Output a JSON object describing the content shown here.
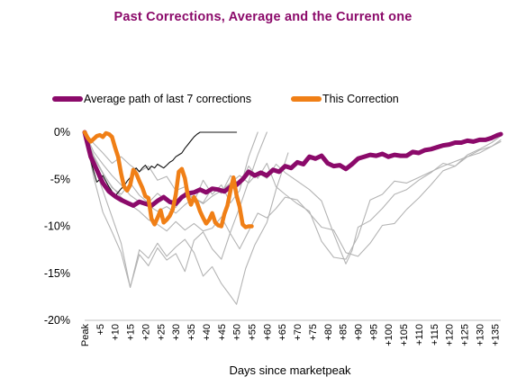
{
  "chart_data": {
    "type": "line",
    "title": "Past Corrections, Average and the Current one",
    "xlabel": "Days since marketpeak",
    "ylabel": "",
    "xlim": [
      0,
      137
    ],
    "ylim": [
      -20,
      0
    ],
    "y_ticks": [
      "0%",
      "-5%",
      "-10%",
      "-15%",
      "-20%"
    ],
    "y_tick_values": [
      0,
      -5,
      -10,
      -15,
      -20
    ],
    "x_ticks": [
      "Peak",
      "+5",
      "+10",
      "+15",
      "+20",
      "+25",
      "+30",
      "+35",
      "+40",
      "+45",
      "+50",
      "+55",
      "+60",
      "+65",
      "+70",
      "+75",
      "+80",
      "+85",
      "+90",
      "+95",
      "+100",
      "+105",
      "+110",
      "+115",
      "+120",
      "+125",
      "+130",
      "+135"
    ],
    "x_tick_values": [
      0,
      5,
      10,
      15,
      20,
      25,
      30,
      35,
      40,
      45,
      50,
      55,
      60,
      65,
      70,
      75,
      80,
      85,
      90,
      95,
      100,
      105,
      110,
      115,
      120,
      125,
      130,
      135
    ],
    "legend_position": "top-left",
    "grid": false,
    "colors": {
      "average": "#8b0a6a",
      "current": "#f07f16",
      "past": "#b4b4b4",
      "dark_past": "#111111",
      "title": "#8b0a6a"
    },
    "series": [
      {
        "name": "Average path of last 7 corrections",
        "role": "average",
        "x": [
          0,
          2,
          4,
          6,
          8,
          10,
          12,
          14,
          16,
          18,
          20,
          22,
          24,
          26,
          28,
          30,
          32,
          34,
          36,
          38,
          40,
          42,
          44,
          46,
          48,
          50,
          52,
          54,
          56,
          58,
          60,
          62,
          64,
          66,
          68,
          70,
          72,
          74,
          76,
          78,
          80,
          82,
          84,
          86,
          88,
          90,
          92,
          94,
          96,
          98,
          100,
          102,
          104,
          106,
          108,
          110,
          112,
          114,
          116,
          118,
          120,
          122,
          124,
          126,
          128,
          130,
          132,
          134,
          136,
          137
        ],
        "y": [
          0,
          -2.6,
          -4,
          -5.4,
          -6.3,
          -6.8,
          -7.2,
          -7.5,
          -7.8,
          -7.4,
          -7.6,
          -7.8,
          -7.3,
          -6.9,
          -7.4,
          -7.6,
          -6.9,
          -6.5,
          -6.4,
          -6.1,
          -6.4,
          -6,
          -6.1,
          -6.3,
          -5.8,
          -5.6,
          -5,
          -4.2,
          -4.6,
          -4.3,
          -4.6,
          -4,
          -4.2,
          -3.6,
          -3.8,
          -3.2,
          -3.4,
          -2.6,
          -2.8,
          -2.5,
          -3.3,
          -3.6,
          -3.5,
          -3.9,
          -3.4,
          -2.8,
          -2.6,
          -2.4,
          -2.5,
          -2.3,
          -2.6,
          -2.4,
          -2.5,
          -2.5,
          -2.1,
          -2.2,
          -1.9,
          -1.8,
          -1.6,
          -1.4,
          -1.3,
          -1.1,
          -1.1,
          -0.9,
          -1,
          -0.8,
          -0.8,
          -0.6,
          -0.3,
          -0.2
        ]
      },
      {
        "name": "This Correction",
        "role": "current",
        "x": [
          0,
          1,
          2,
          3,
          4,
          5,
          6,
          7,
          8,
          9,
          10,
          11,
          12,
          13,
          14,
          15,
          16,
          17,
          18,
          19,
          20,
          21,
          22,
          23,
          24,
          25,
          26,
          27,
          28,
          29,
          30,
          31,
          32,
          33,
          34,
          35,
          36,
          37,
          38,
          39,
          40,
          41,
          42,
          43,
          44,
          45,
          46,
          47,
          48,
          49,
          50,
          51,
          52,
          53,
          54,
          55
        ],
        "y": [
          0,
          -0.6,
          -1,
          -0.7,
          -0.4,
          -0.3,
          -0.5,
          -0.1,
          -0.2,
          -0.5,
          -1.6,
          -2.6,
          -4.4,
          -5.8,
          -6.2,
          -5.6,
          -4,
          -4.4,
          -5.2,
          -5.9,
          -6.8,
          -7,
          -9.2,
          -9.8,
          -9.1,
          -8.3,
          -9.6,
          -9.3,
          -8.9,
          -8.2,
          -6.6,
          -4.2,
          -3.9,
          -4.9,
          -6.8,
          -7.7,
          -6.9,
          -7.5,
          -8.4,
          -9.1,
          -9.7,
          -9.3,
          -8.6,
          -9.6,
          -9.9,
          -10,
          -8.7,
          -7.8,
          -6.2,
          -4.8,
          -6.7,
          -7.9,
          -9.8,
          -10.1,
          -10,
          -10
        ]
      },
      {
        "name": "",
        "role": "past-dark",
        "x": [
          0,
          1,
          2,
          3,
          4,
          5,
          6,
          7,
          8,
          9,
          10,
          11,
          12,
          13,
          14,
          15,
          16,
          17,
          18,
          19,
          20,
          21,
          22,
          23,
          24,
          25,
          26,
          27,
          28,
          29,
          30,
          31,
          32,
          33,
          34,
          35,
          36,
          37,
          38,
          39,
          40,
          41,
          42,
          43,
          44,
          45,
          46,
          47,
          48,
          49,
          50
        ],
        "y": [
          0,
          -1.5,
          -3,
          -4.2,
          -5.3,
          -5,
          -4.6,
          -5.2,
          -5.8,
          -6.3,
          -6.8,
          -6.4,
          -6,
          -5.7,
          -5.2,
          -4.8,
          -4.1,
          -3.8,
          -4.2,
          -3.8,
          -3.5,
          -4,
          -3.6,
          -3.8,
          -3.4,
          -3.6,
          -3.8,
          -3.5,
          -3.2,
          -3,
          -2.6,
          -2.4,
          -2.2,
          -1.7,
          -1.3,
          -0.9,
          -0.5,
          -0.2,
          0,
          0,
          0,
          0,
          0,
          0,
          0,
          0,
          0,
          0,
          0,
          0,
          0
        ]
      },
      {
        "name": "",
        "role": "past",
        "x": [
          0,
          3,
          6,
          9,
          12,
          15,
          18,
          21,
          24,
          27,
          30,
          33,
          36,
          39,
          42,
          45,
          48,
          51,
          54,
          57,
          60
        ],
        "y": [
          0,
          -3.5,
          -6.2,
          -9,
          -11.8,
          -16.5,
          -13,
          -14.2,
          -12.3,
          -13.6,
          -12.9,
          -14.8,
          -11.5,
          -10.6,
          -12.4,
          -13.5,
          -10.6,
          -8,
          -5.2,
          -2.4,
          0
        ]
      },
      {
        "name": "",
        "role": "past",
        "x": [
          0,
          3,
          6,
          9,
          12,
          15,
          18,
          21,
          24,
          27,
          30,
          33,
          36,
          39,
          42,
          45,
          48,
          50,
          53,
          56,
          60,
          63,
          67
        ],
        "y": [
          0,
          -4.8,
          -8.5,
          -10.6,
          -12.8,
          -16.5,
          -12.5,
          -13.4,
          -11.8,
          -13.2,
          -12.2,
          -11.4,
          -12.8,
          -15.3,
          -14.3,
          -16.1,
          -17.4,
          -18.3,
          -14.5,
          -12,
          -9.6,
          -6.1,
          -2.2
        ]
      },
      {
        "name": "",
        "role": "past",
        "x": [
          0,
          3,
          6,
          9,
          12,
          15,
          18,
          21,
          24,
          27,
          30,
          33,
          36,
          39,
          42,
          45,
          48,
          51,
          54,
          57
        ],
        "y": [
          0,
          -1.2,
          -2.2,
          -3.3,
          -2.6,
          -3.5,
          -4.2,
          -3.6,
          -5.1,
          -4.7,
          -6.2,
          -5.8,
          -7.4,
          -5.1,
          -6.6,
          -5.6,
          -7.5,
          -6.2,
          -2.6,
          0
        ]
      },
      {
        "name": "",
        "role": "past",
        "x": [
          0,
          3,
          6,
          9,
          12,
          15,
          18,
          21,
          24,
          27,
          30,
          33,
          36,
          39,
          42,
          45,
          48,
          51,
          54,
          57,
          60,
          63,
          66,
          70,
          74,
          78,
          82,
          86,
          90,
          94,
          98,
          102,
          106,
          110,
          114,
          118,
          122,
          126,
          130,
          134,
          137
        ],
        "y": [
          0,
          -2.7,
          -4.4,
          -5.8,
          -6.9,
          -7.7,
          -8.4,
          -9.3,
          -9.8,
          -10.5,
          -9.5,
          -10.4,
          -9.7,
          -10.5,
          -10.2,
          -9,
          -10.8,
          -12.4,
          -10.5,
          -8.6,
          -9.1,
          -8.1,
          -6.9,
          -7.2,
          -8.6,
          -10.1,
          -10.4,
          -12.8,
          -13.2,
          -11.8,
          -9.9,
          -9.7,
          -8.2,
          -7,
          -5.6,
          -4.1,
          -3.6,
          -2.6,
          -2.2,
          -1.5,
          -0.8
        ]
      },
      {
        "name": "",
        "role": "past",
        "x": [
          0,
          3,
          6,
          9,
          12,
          15,
          18,
          21,
          24,
          27,
          30,
          33,
          36,
          39,
          42,
          45,
          48,
          51,
          54,
          57,
          60,
          63,
          66,
          70,
          74,
          78,
          82,
          86,
          88,
          90,
          94,
          98,
          102,
          106,
          110,
          114,
          118,
          122,
          126,
          130,
          134,
          137
        ],
        "y": [
          0,
          -2.1,
          -3.4,
          -4.6,
          -5.6,
          -6.7,
          -7.4,
          -7.8,
          -8.4,
          -7.9,
          -8.6,
          -7.7,
          -7,
          -7.6,
          -6.8,
          -6.2,
          -5.4,
          -4.6,
          -5.4,
          -4.3,
          -4.9,
          -3.4,
          -4.3,
          -5.2,
          -6.1,
          -7.3,
          -10.8,
          -14,
          -12.6,
          -10.1,
          -9.4,
          -8.1,
          -6.6,
          -6.1,
          -5.1,
          -4.3,
          -3.3,
          -3.6,
          -2.4,
          -1.8,
          -1.1,
          -0.4
        ]
      },
      {
        "name": "",
        "role": "past",
        "x": [
          0,
          3,
          6,
          9,
          12,
          15,
          18,
          21,
          24,
          27,
          30,
          33,
          36,
          39,
          42,
          45,
          48,
          51,
          54,
          57,
          60,
          63,
          66,
          70,
          74,
          78,
          82,
          86,
          90,
          94,
          98,
          102,
          106,
          110,
          114,
          118,
          122,
          126,
          130,
          134,
          137
        ],
        "y": [
          0,
          -2.5,
          -4.3,
          -5.9,
          -6.6,
          -5.4,
          -6.7,
          -7.5,
          -6.5,
          -7.3,
          -8,
          -6.4,
          -7,
          -7.5,
          -5.9,
          -6.5,
          -4.6,
          -5.6,
          -3.6,
          -4.9,
          -3.3,
          -5.8,
          -6.6,
          -7.6,
          -8.4,
          -11.6,
          -13.3,
          -13.5,
          -11.1,
          -7.2,
          -6.6,
          -5.2,
          -5.4,
          -4.8,
          -4.2,
          -3.6,
          -3.1,
          -2.6,
          -1.9,
          -1.5,
          -1
        ]
      }
    ]
  },
  "legend": {
    "average_label": "Average path of last 7 corrections",
    "current_label": "This Correction"
  }
}
